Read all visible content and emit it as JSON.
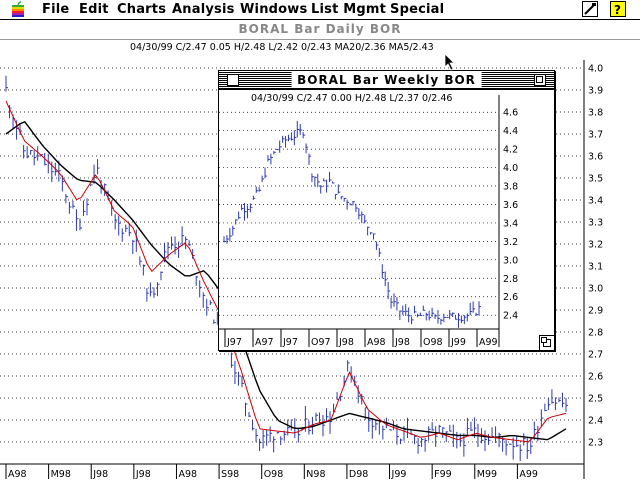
{
  "menubar": {
    "apple": "apple-menu-icon",
    "items": [
      "File",
      "Edit",
      "Charts",
      "Analysis",
      "Windows",
      "List Mgmt",
      "Special"
    ],
    "right_icons": [
      "tool-icon",
      "help-icon"
    ]
  },
  "daily_window": {
    "title": "BORAL Bar Daily  BOR",
    "info": "04/30/99 C/2.47 0.05 H/2.48 L/2.42 0/2.43 MA20/2.36 MA5/2.43"
  },
  "weekly_window": {
    "title": "BORAL Bar Weekly  BOR",
    "info": "04/30/99 C/2.47 0.00 H/2.48 L/2.37 0/2.46"
  },
  "colors": {
    "ma_short": "#cc0000",
    "ma_long": "#000000",
    "bars": "#2d38b0"
  },
  "chart_data": [
    {
      "type": "bar",
      "chart_style": "ohlc",
      "title": "BORAL Bar Daily  BOR",
      "ylim": [
        2.2,
        4.0
      ],
      "yticks": [
        "4.0",
        "3.9",
        "3.8",
        "3.7",
        "3.6",
        "3.5",
        "3.4",
        "3.3",
        "3.2",
        "3.1",
        "3.0",
        "2.9",
        "2.8",
        "2.7",
        "2.6",
        "2.5",
        "2.4",
        "2.3"
      ],
      "x_ticks": [
        "A98",
        "M98",
        "J98",
        "J98",
        "A98",
        "S98",
        "O98",
        "N98",
        "D98",
        "J99",
        "F99",
        "M99",
        "A99"
      ],
      "grid": true,
      "series": [
        {
          "name": "MA20",
          "values": [
            3.7,
            3.76,
            3.65,
            3.56,
            3.49,
            3.48,
            3.4,
            3.31,
            3.2,
            3.11,
            3.05,
            3.08,
            2.97,
            2.78,
            2.54,
            2.4,
            2.36,
            2.37,
            2.4,
            2.43,
            2.41,
            2.39,
            2.36,
            2.35,
            2.34,
            2.33,
            2.33,
            2.32,
            2.33,
            2.32,
            2.31,
            2.36
          ]
        },
        {
          "name": "MA5",
          "values": [
            3.85,
            3.67,
            3.6,
            3.52,
            3.39,
            3.52,
            3.35,
            3.28,
            3.07,
            3.15,
            3.21,
            3.02,
            2.86,
            2.63,
            2.36,
            2.35,
            2.34,
            2.38,
            2.4,
            2.62,
            2.45,
            2.38,
            2.35,
            2.32,
            2.34,
            2.31,
            2.34,
            2.32,
            2.31,
            2.3,
            2.41,
            2.43
          ]
        },
        {
          "name": "Price",
          "values": [
            3.9,
            3.62,
            3.58,
            3.5,
            3.28,
            3.55,
            3.3,
            3.25,
            2.95,
            3.2,
            3.22,
            2.95,
            2.8,
            2.55,
            2.3,
            2.35,
            2.33,
            2.4,
            2.42,
            2.65,
            2.42,
            2.36,
            2.33,
            2.31,
            2.35,
            2.3,
            2.35,
            2.32,
            2.3,
            2.28,
            2.5,
            2.47
          ]
        }
      ]
    },
    {
      "type": "bar",
      "chart_style": "ohlc",
      "title": "BORAL Bar Weekly  BOR",
      "ylim": [
        2.25,
        4.7
      ],
      "yticks": [
        "4.6",
        "4.4",
        "4.2",
        "4.0",
        "3.8",
        "3.6",
        "3.4",
        "3.2",
        "3.0",
        "2.8",
        "2.6",
        "2.4"
      ],
      "x_ticks": [
        "J97",
        "A97",
        "J97",
        "O97",
        "J98",
        "A98",
        "J98",
        "O98",
        "J99",
        "A99"
      ],
      "grid": true,
      "series": [
        {
          "name": "Price",
          "values": [
            3.2,
            3.35,
            3.55,
            3.6,
            3.75,
            4.05,
            4.2,
            4.3,
            4.35,
            4.4,
            3.95,
            3.8,
            3.85,
            3.7,
            3.65,
            3.6,
            3.4,
            3.3,
            2.9,
            2.55,
            2.45,
            2.4,
            2.38,
            2.42,
            2.36,
            2.4,
            2.38,
            2.39,
            2.4,
            2.47
          ]
        }
      ]
    }
  ]
}
